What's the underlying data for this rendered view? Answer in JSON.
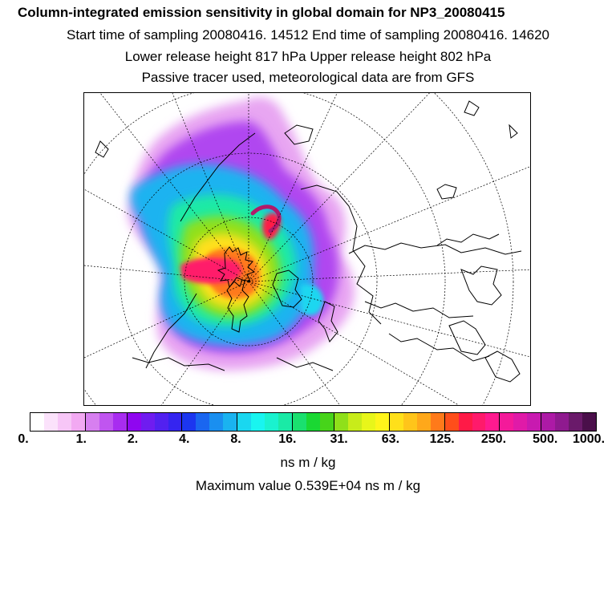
{
  "header": {
    "title": "Column-integrated emission sensitivity in global domain for NP3_20080415",
    "line1": "Start time of sampling 20080416. 14512      End time of sampling 20080416. 14620",
    "line2": "Lower release height  817 hPa         Upper release height  802 hPa",
    "line3": "Passive tracer used, meteorological data are from GFS"
  },
  "colorbar": {
    "colors": [
      "#ffffff",
      "#fbe2fb",
      "#f7c6f7",
      "#f2a9f2",
      "#d77ff0",
      "#c055f0",
      "#a82cf0",
      "#8f06f0",
      "#6f1cf0",
      "#5221f0",
      "#3525f0",
      "#1c36f0",
      "#1a66f0",
      "#1a8ff0",
      "#1ab3f0",
      "#1ad7f0",
      "#19f5f0",
      "#1af2cf",
      "#1aeaa6",
      "#1ae06f",
      "#1ad833",
      "#47d41a",
      "#8fe01a",
      "#c8ec1a",
      "#e8f61a",
      "#fff51a",
      "#ffe01a",
      "#ffc51a",
      "#ffa81a",
      "#ff7a1a",
      "#ff4e1a",
      "#ff1a47",
      "#ff1a6b",
      "#ff1a8f",
      "#f41a9a",
      "#e01aa8",
      "#c81ab0",
      "#ad1aa6",
      "#8f1a8f",
      "#6a1a6a",
      "#4a0f4a"
    ],
    "tick_labels": [
      "0.",
      "1.",
      "2.",
      "4.",
      "8.",
      "16.",
      "31.",
      "63.",
      "125.",
      "250.",
      "500.",
      "1000."
    ],
    "units": "ns m / kg"
  },
  "max_value_text": "Maximum value  0.539E+04 ns m / kg"
}
